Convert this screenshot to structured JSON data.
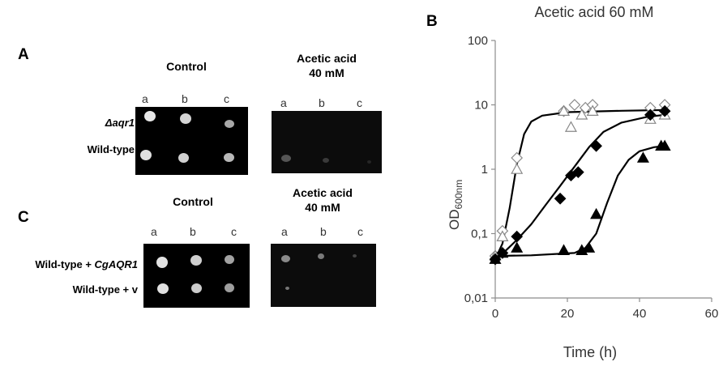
{
  "panelA": {
    "letter": "A",
    "control_heading": "Control",
    "acid_heading_line1": "Acetic acid",
    "acid_heading_line2": "40 mM",
    "dilutions": [
      "a",
      "b",
      "c"
    ],
    "rows": [
      "Δaqr1",
      "Wild-type"
    ]
  },
  "panelC": {
    "letter": "C",
    "control_heading": "Control",
    "acid_heading_line1": "Acetic acid",
    "acid_heading_line2": "40 mM",
    "dilutions": [
      "a",
      "b",
      "c"
    ],
    "row1_prefix": "Wild-type + ",
    "row1_gene": "CgAQR1",
    "row2": "Wild-type + v"
  },
  "panelB": {
    "letter": "B",
    "title": "Acetic acid 60 mM",
    "ylabel": "OD",
    "ylabel_sub": "600nm",
    "xlabel": "Time (h)"
  },
  "chart_data": {
    "type": "scatter",
    "title": "Acetic acid 60 mM",
    "xlabel": "Time (h)",
    "ylabel": "OD600nm",
    "xlim": [
      0,
      60
    ],
    "ylim": [
      0.01,
      100
    ],
    "yscale": "log",
    "x_ticks": [
      "0",
      "20",
      "40",
      "60"
    ],
    "y_ticks": [
      "0,01",
      "0,1",
      "1",
      "10",
      "100"
    ],
    "grid": false,
    "legend": "none",
    "series": [
      {
        "marker": "open-diamond",
        "points": [
          [
            0,
            0.045
          ],
          [
            2,
            0.11
          ],
          [
            6,
            1.5
          ],
          [
            19,
            8
          ],
          [
            22,
            10
          ],
          [
            25,
            9
          ],
          [
            27,
            10
          ],
          [
            43,
            9
          ],
          [
            47,
            10
          ]
        ]
      },
      {
        "marker": "open-triangle",
        "points": [
          [
            0,
            0.045
          ],
          [
            2,
            0.09
          ],
          [
            6,
            1.0
          ],
          [
            19,
            8
          ],
          [
            21,
            4.5
          ],
          [
            24,
            7
          ],
          [
            27,
            8
          ],
          [
            43,
            6
          ],
          [
            47,
            7
          ]
        ]
      },
      {
        "marker": "filled-diamond",
        "points": [
          [
            0,
            0.04
          ],
          [
            2,
            0.05
          ],
          [
            6,
            0.09
          ],
          [
            18,
            0.35
          ],
          [
            21,
            0.8
          ],
          [
            23,
            0.9
          ],
          [
            28,
            2.3
          ],
          [
            43,
            7
          ],
          [
            47,
            8
          ]
        ]
      },
      {
        "marker": "filled-triangle",
        "points": [
          [
            0,
            0.04
          ],
          [
            2,
            0.05
          ],
          [
            6,
            0.06
          ],
          [
            19,
            0.055
          ],
          [
            24,
            0.055
          ],
          [
            26,
            0.06
          ],
          [
            28,
            0.2
          ],
          [
            41,
            1.5
          ],
          [
            46,
            2.3
          ],
          [
            47,
            2.3
          ]
        ]
      }
    ],
    "fits": [
      {
        "marker": "open",
        "points": [
          [
            0,
            0.04
          ],
          [
            2,
            0.07
          ],
          [
            4,
            0.25
          ],
          [
            6,
            1.2
          ],
          [
            8,
            3.5
          ],
          [
            10,
            5.5
          ],
          [
            13,
            6.8
          ],
          [
            20,
            7.7
          ],
          [
            35,
            8.1
          ],
          [
            47,
            8.3
          ]
        ]
      },
      {
        "marker": "filled-diamond",
        "points": [
          [
            0,
            0.04
          ],
          [
            3,
            0.055
          ],
          [
            6,
            0.08
          ],
          [
            10,
            0.14
          ],
          [
            14,
            0.28
          ],
          [
            18,
            0.55
          ],
          [
            22,
            1.1
          ],
          [
            26,
            2.2
          ],
          [
            30,
            3.8
          ],
          [
            35,
            5.3
          ],
          [
            42,
            6.5
          ],
          [
            47,
            7
          ]
        ]
      },
      {
        "marker": "filled-triangle",
        "points": [
          [
            0,
            0.045
          ],
          [
            10,
            0.046
          ],
          [
            22,
            0.05
          ],
          [
            25,
            0.06
          ],
          [
            28,
            0.1
          ],
          [
            31,
            0.3
          ],
          [
            34,
            0.8
          ],
          [
            37,
            1.4
          ],
          [
            40,
            1.9
          ],
          [
            44,
            2.2
          ],
          [
            47,
            2.3
          ]
        ]
      }
    ]
  }
}
